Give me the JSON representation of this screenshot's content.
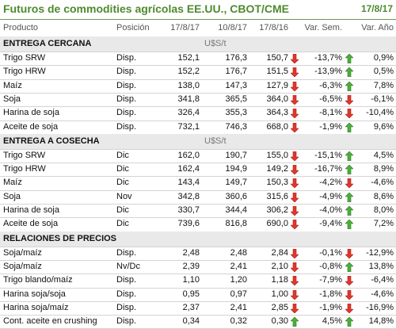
{
  "header": {
    "title": "Futuros de commodities agrícolas EE.UU., CBOT/CME",
    "date": "17/8/17"
  },
  "table": {
    "columns": [
      "Producto",
      "Posición",
      "17/8/17",
      "10/8/17",
      "17/8/16",
      "Var. Sem.",
      "Var. Año"
    ],
    "sections": [
      {
        "title": "ENTREGA CERCANA",
        "unit": "U$S/t",
        "rows": [
          [
            "Trigo SRW",
            "Disp.",
            "152,1",
            "176,3",
            "150,7",
            "-13,7%",
            "0,9%"
          ],
          [
            "Trigo HRW",
            "Disp.",
            "152,2",
            "176,7",
            "151,5",
            "-13,9%",
            "0,5%"
          ],
          [
            "Maíz",
            "Disp.",
            "138,0",
            "147,3",
            "127,9",
            "-6,3%",
            "7,8%"
          ],
          [
            "Soja",
            "Disp.",
            "341,8",
            "365,5",
            "364,0",
            "-6,5%",
            "-6,1%"
          ],
          [
            "Harina de soja",
            "Disp.",
            "326,4",
            "355,3",
            "364,3",
            "-8,1%",
            "-10,4%"
          ],
          [
            "Aceite de soja",
            "Disp.",
            "732,1",
            "746,3",
            "668,0",
            "-1,9%",
            "9,6%"
          ]
        ]
      },
      {
        "title": "ENTREGA A COSECHA",
        "unit": "U$S/t",
        "rows": [
          [
            "Trigo SRW",
            "Dic",
            "162,0",
            "190,7",
            "155,0",
            "-15,1%",
            "4,5%"
          ],
          [
            "Trigo HRW",
            "Dic",
            "162,4",
            "194,9",
            "149,2",
            "-16,7%",
            "8,9%"
          ],
          [
            "Maíz",
            "Dic",
            "143,4",
            "149,7",
            "150,3",
            "-4,2%",
            "-4,6%"
          ],
          [
            "Soja",
            "Nov",
            "342,8",
            "360,6",
            "315,6",
            "-4,9%",
            "8,6%"
          ],
          [
            "Harina de soja",
            "Dic",
            "330,7",
            "344,4",
            "306,2",
            "-4,0%",
            "8,0%"
          ],
          [
            "Aceite de soja",
            "Dic",
            "739,6",
            "816,8",
            "690,0",
            "-9,4%",
            "7,2%"
          ]
        ]
      },
      {
        "title": "RELACIONES DE PRECIOS",
        "rows": [
          [
            "Soja/maíz",
            "Disp.",
            "2,48",
            "2,48",
            "2,84",
            "-0,1%",
            "-12,9%"
          ],
          [
            "Soja/maíz",
            "Nv/Dc",
            "2,39",
            "2,41",
            "2,10",
            "-0,8%",
            "13,8%"
          ],
          [
            "Trigo blando/maíz",
            "Disp.",
            "1,10",
            "1,20",
            "1,18",
            "-7,9%",
            "-6,4%"
          ],
          [
            "Harina soja/soja",
            "Disp.",
            "0,95",
            "0,97",
            "1,00",
            "-1,8%",
            "-4,6%"
          ],
          [
            "Harina soja/maíz",
            "Disp.",
            "2,37",
            "2,41",
            "2,85",
            "-1,9%",
            "-16,9%"
          ],
          [
            "Cont. aceite en crushing",
            "Disp.",
            "0,34",
            "0,32",
            "0,30",
            "4,5%",
            "14,8%"
          ]
        ]
      }
    ]
  }
}
